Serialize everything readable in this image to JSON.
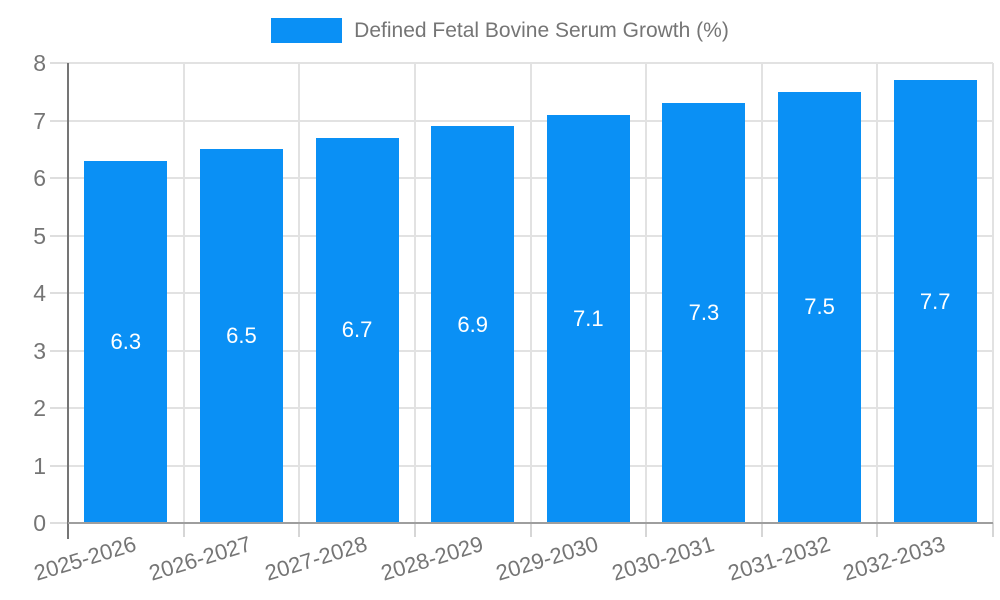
{
  "legend": {
    "label": "Defined Fetal Bovine Serum Growth (%)"
  },
  "colors": {
    "bar": "#0a90f5",
    "axis_text": "#757575",
    "value_text": "#ffffff",
    "grid": "#e2e2e2",
    "y_axis_line": "#757575",
    "x_axis_line": "#9e9e9e",
    "background": "#ffffff"
  },
  "chart_data": {
    "type": "bar",
    "title": "Defined Fetal Bovine Serum Growth (%)",
    "categories": [
      "2025-2026",
      "2026-2027",
      "2027-2028",
      "2028-2029",
      "2029-2030",
      "2030-2031",
      "2031-2032",
      "2032-2033"
    ],
    "values": [
      6.3,
      6.5,
      6.7,
      6.9,
      7.1,
      7.3,
      7.5,
      7.7
    ],
    "value_labels": [
      "6.3",
      "6.5",
      "6.7",
      "6.9",
      "7.1",
      "7.3",
      "7.5",
      "7.7"
    ],
    "xlabel": "",
    "ylabel": "",
    "ylim": [
      0,
      8
    ],
    "yticks": [
      0,
      1,
      2,
      3,
      4,
      5,
      6,
      7,
      8
    ],
    "grid": true,
    "legend_position": "top",
    "bar_label_position": "center"
  }
}
